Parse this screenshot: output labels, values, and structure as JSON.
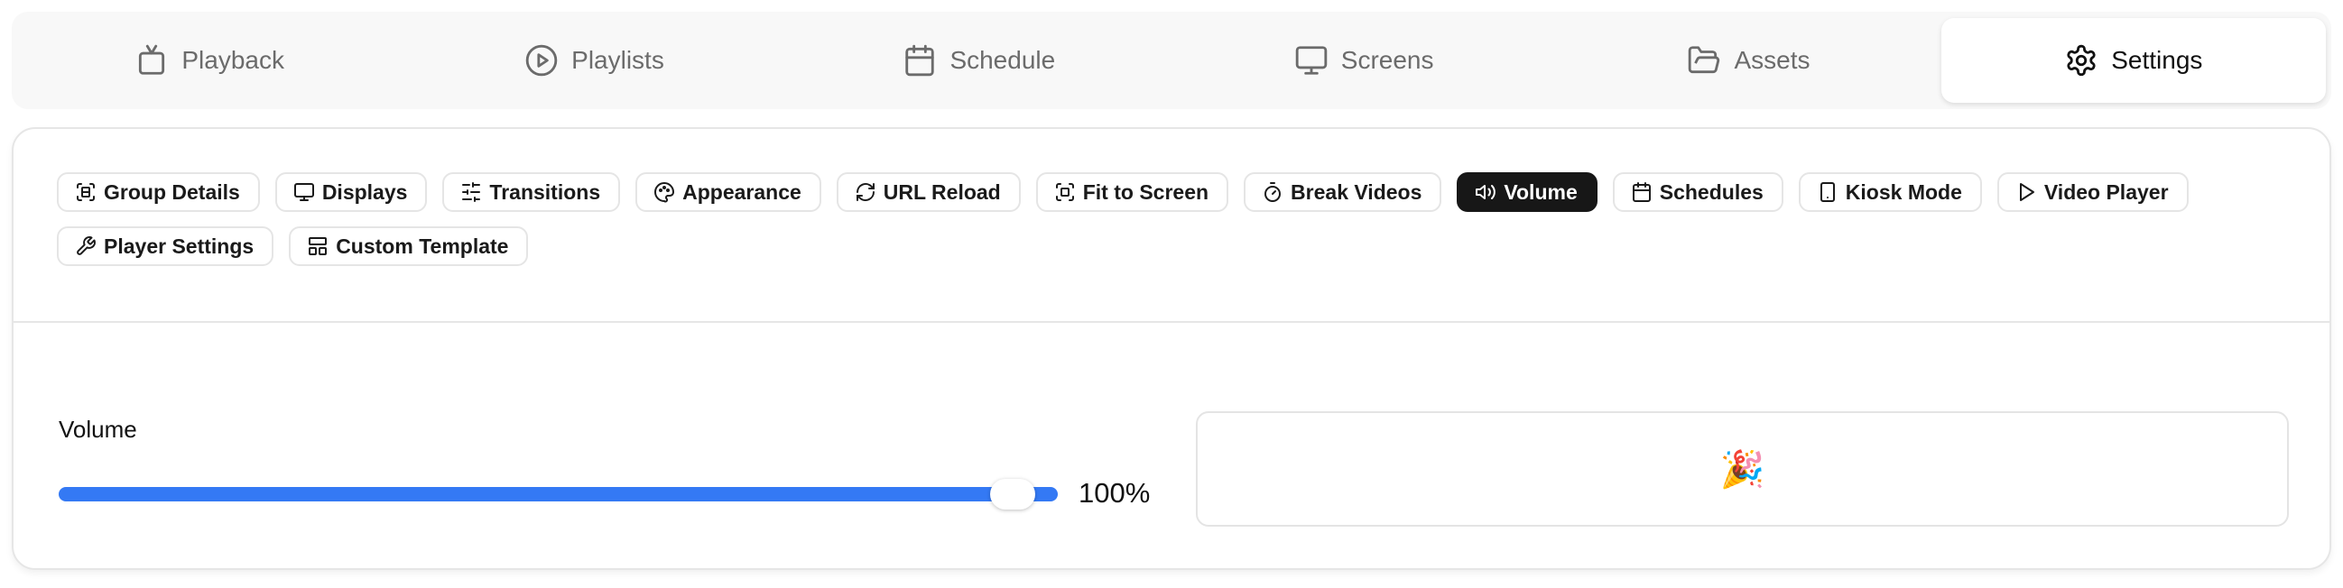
{
  "tabs": [
    {
      "label": "Playback",
      "icon": "tv-icon"
    },
    {
      "label": "Playlists",
      "icon": "play-circle-icon"
    },
    {
      "label": "Schedule",
      "icon": "calendar-icon"
    },
    {
      "label": "Screens",
      "icon": "monitor-icon"
    },
    {
      "label": "Assets",
      "icon": "folder-open-icon"
    },
    {
      "label": "Settings",
      "icon": "gear-icon",
      "active": true
    }
  ],
  "chips": [
    {
      "label": "Group Details",
      "icon": "scan-face-icon"
    },
    {
      "label": "Displays",
      "icon": "monitor-icon"
    },
    {
      "label": "Transitions",
      "icon": "sliders-icon"
    },
    {
      "label": "Appearance",
      "icon": "palette-icon"
    },
    {
      "label": "URL Reload",
      "icon": "refresh-icon"
    },
    {
      "label": "Fit to Screen",
      "icon": "scan-icon"
    },
    {
      "label": "Break Videos",
      "icon": "timer-icon"
    },
    {
      "label": "Volume",
      "icon": "volume-icon",
      "active": true
    },
    {
      "label": "Schedules",
      "icon": "calendar-icon"
    },
    {
      "label": "Kiosk Mode",
      "icon": "tablet-icon"
    },
    {
      "label": "Video Player",
      "icon": "play-icon"
    },
    {
      "label": "Player Settings",
      "icon": "wrench-icon"
    },
    {
      "label": "Custom Template",
      "icon": "layout-icon"
    }
  ],
  "volume": {
    "label": "Volume",
    "value_text": "100%",
    "value": 100,
    "accent": "#3479f4"
  },
  "preview": {
    "emoji": "🎉"
  }
}
